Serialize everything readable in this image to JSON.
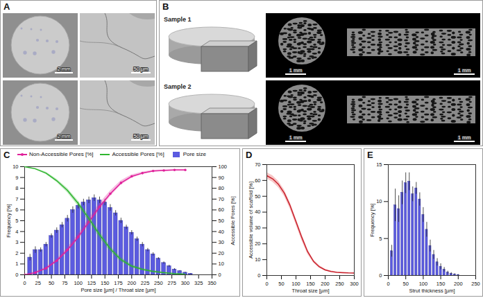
{
  "figure": {
    "A": {
      "letter": "A",
      "scale_bars": [
        [
          "2 mm",
          "50 µm"
        ],
        [
          "2 mm",
          "50 µm"
        ]
      ]
    },
    "B": {
      "letter": "B",
      "rows": [
        {
          "label": "Sample 1",
          "scale_bars": [
            "1 mm",
            "1 mm"
          ]
        },
        {
          "label": "Sample 2",
          "scale_bars": [
            "1 mm",
            "1 mm"
          ]
        }
      ]
    },
    "C": {
      "letter": "C"
    },
    "D": {
      "letter": "D"
    },
    "E": {
      "letter": "E"
    }
  },
  "chart_data": [
    {
      "type": "bar+line",
      "xlabel": "Pore size [µm] / Throat size [µm]",
      "ylabel": "Frequency [%]",
      "y2label": "Accessible Pores [%]",
      "xlim": [
        0,
        350
      ],
      "xticks": [
        0,
        25,
        50,
        75,
        100,
        125,
        150,
        175,
        200,
        225,
        250,
        275,
        300,
        325,
        350
      ],
      "ylim": [
        0,
        10
      ],
      "yticks": [
        0,
        1,
        2,
        3,
        4,
        5,
        6,
        7,
        8,
        9,
        10
      ],
      "y2lim": [
        0,
        100
      ],
      "y2ticks": [
        0,
        10,
        20,
        30,
        40,
        50,
        60,
        70,
        80,
        90,
        100
      ],
      "legend": "top",
      "series": [
        {
          "name": "Non-Accessible Pores [%]",
          "type": "line",
          "axis": "y2",
          "color": "#e0209a",
          "marker": "dot",
          "x": [
            0,
            20,
            40,
            60,
            80,
            100,
            120,
            140,
            160,
            180,
            200,
            220,
            240,
            260,
            280,
            300
          ],
          "values": [
            0,
            2,
            6,
            13,
            23,
            35,
            49,
            63,
            75,
            85,
            91,
            94,
            96,
            96.5,
            97,
            97
          ],
          "errors": [
            0,
            0.5,
            1,
            1.5,
            2,
            2.5,
            3,
            3,
            2.5,
            2,
            1.5,
            1,
            0.8,
            0.6,
            0.5,
            0.5
          ]
        },
        {
          "name": "Accessible Pores [%]",
          "type": "line",
          "axis": "y2",
          "color": "#2fb52f",
          "line_style": "solid",
          "x": [
            0,
            20,
            40,
            60,
            80,
            100,
            120,
            140,
            160,
            180,
            200,
            220,
            240,
            260,
            280,
            300
          ],
          "values": [
            100,
            98,
            94,
            87,
            78,
            66,
            52,
            37,
            24,
            14,
            8,
            5,
            3,
            2,
            1,
            0.5
          ],
          "errors": [
            0,
            0.5,
            1,
            1.5,
            2,
            2.5,
            3,
            3,
            2.5,
            2,
            1.5,
            1,
            0.8,
            0.5,
            0.4,
            0.3
          ]
        },
        {
          "name": "Pore size",
          "type": "bar",
          "color": "#5b5be0",
          "bins": [
            5,
            15,
            25,
            35,
            45,
            55,
            65,
            75,
            85,
            95,
            105,
            115,
            125,
            135,
            145,
            155,
            165,
            175,
            185,
            195,
            205,
            215,
            225,
            235,
            245,
            255,
            265,
            275,
            285,
            295,
            305,
            315
          ],
          "values": [
            1.6,
            2.3,
            2.3,
            2.8,
            3.6,
            4.1,
            4.6,
            5.2,
            6.0,
            6.4,
            6.7,
            6.9,
            7.1,
            6.9,
            6.7,
            6.2,
            5.7,
            5.0,
            4.4,
            3.9,
            3.3,
            2.8,
            2.3,
            1.9,
            1.5,
            1.1,
            0.8,
            0.5,
            0.35,
            0.2,
            0.1
          ],
          "errors": [
            0.3,
            0.3,
            0.2,
            0.2,
            0.2,
            0.25,
            0.25,
            0.3,
            0.3,
            0.3,
            0.3,
            0.3,
            0.3,
            0.3,
            0.3,
            0.3,
            0.25,
            0.25,
            0.2,
            0.2,
            0.2,
            0.2,
            0.15,
            0.15,
            0.1,
            0.1,
            0.1,
            0.08,
            0.05,
            0.05,
            0.03
          ]
        }
      ]
    },
    {
      "type": "line",
      "xlabel": "Throat size [µm]",
      "ylabel": "Accessible volume of scaffold [%]",
      "xlim": [
        0,
        300
      ],
      "xticks": [
        0,
        50,
        100,
        150,
        200,
        250,
        300
      ],
      "ylim": [
        0,
        70
      ],
      "yticks": [
        0,
        10,
        20,
        30,
        40,
        50,
        60,
        70
      ],
      "color": "#c8202c",
      "line_style": "solid",
      "x": [
        0,
        20,
        40,
        60,
        80,
        100,
        120,
        140,
        160,
        180,
        200,
        220,
        240,
        260,
        280,
        300
      ],
      "values": [
        63,
        61,
        57.5,
        52,
        44,
        34,
        24,
        15,
        9,
        5.5,
        3.5,
        2.5,
        2,
        1.8,
        1.6,
        1.5
      ],
      "errors": [
        2,
        2,
        2,
        2,
        2,
        2,
        2,
        1.5,
        1,
        0.8,
        0.6,
        0.4,
        0.3,
        0.3,
        0.2,
        0.2
      ]
    },
    {
      "type": "histogram",
      "xlabel": "Strut thickness [µm]",
      "ylabel": "Frequency [%]",
      "xlim": [
        0,
        250
      ],
      "xticks": [
        0,
        50,
        100,
        150,
        200,
        250
      ],
      "ylim": [
        0,
        15
      ],
      "yticks": [
        0,
        5,
        10,
        15
      ],
      "color": "#5b5be0",
      "bins": [
        5,
        15,
        25,
        35,
        45,
        55,
        65,
        75,
        85,
        95,
        105,
        115,
        125,
        135,
        145,
        155,
        165,
        175,
        185,
        195,
        205
      ],
      "values": [
        3.3,
        9.5,
        9.0,
        11.2,
        12.5,
        12.7,
        11.0,
        11.8,
        10.3,
        8.2,
        6.2,
        4.0,
        2.8,
        1.8,
        1.2,
        0.8,
        0.4,
        0.25,
        0.15,
        0.08
      ],
      "errors": [
        0.8,
        2.2,
        1.8,
        1.6,
        1.4,
        1.2,
        1.0,
        0.8,
        0.9,
        1.0,
        1.0,
        0.8,
        0.6,
        0.5,
        0.4,
        0.3,
        0.2,
        0.15,
        0.1,
        0.05
      ]
    }
  ]
}
